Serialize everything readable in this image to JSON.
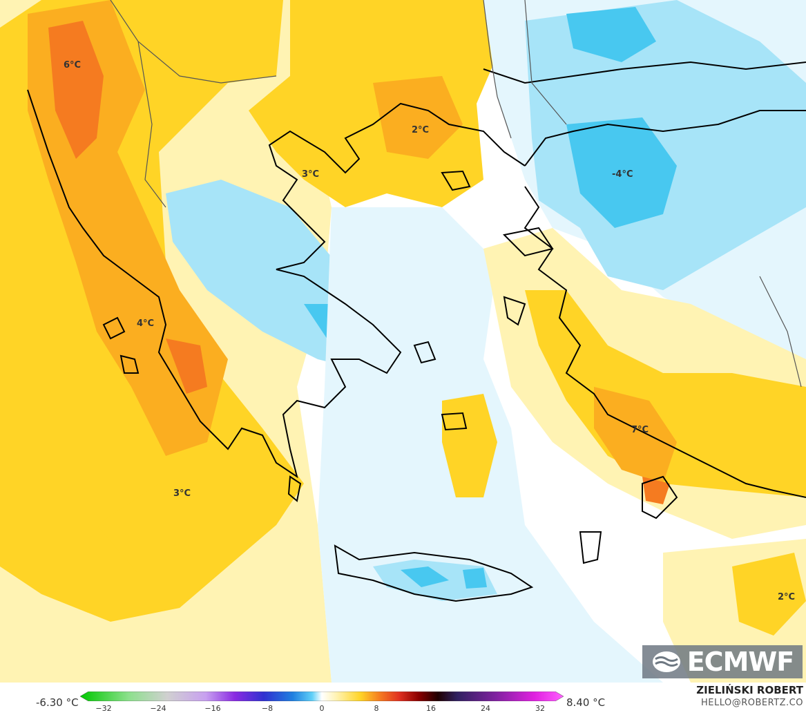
{
  "map": {
    "labels": [
      {
        "id": "l1",
        "text": "6°C"
      },
      {
        "id": "l2",
        "text": "2°C"
      },
      {
        "id": "l3",
        "text": "3°C"
      },
      {
        "id": "l4",
        "text": "-4°C"
      },
      {
        "id": "l5",
        "text": "4°C"
      },
      {
        "id": "l6",
        "text": "7°C"
      },
      {
        "id": "l7",
        "text": "3°C"
      },
      {
        "id": "l8",
        "text": "2°C"
      }
    ],
    "colors": {
      "warm_light": "#fff3b3",
      "warm": "#ffd426",
      "warmer": "#fbae20",
      "hot": "#f57b20",
      "cool_light": "#e4f6fd",
      "cool": "#a7e4f8",
      "cold": "#48c8f0"
    }
  },
  "logo": {
    "text": "ECMWF"
  },
  "legend": {
    "min_label": "-6.30 °C",
    "max_label": "8.40 °C",
    "ticks": [
      "−32",
      "−24",
      "−16",
      "−8",
      "0",
      "8",
      "16",
      "24",
      "32"
    ]
  },
  "credit": {
    "author": "ZIELIŃSKI ROBERT",
    "email": "HELLO@ROBERTZ.CO"
  }
}
